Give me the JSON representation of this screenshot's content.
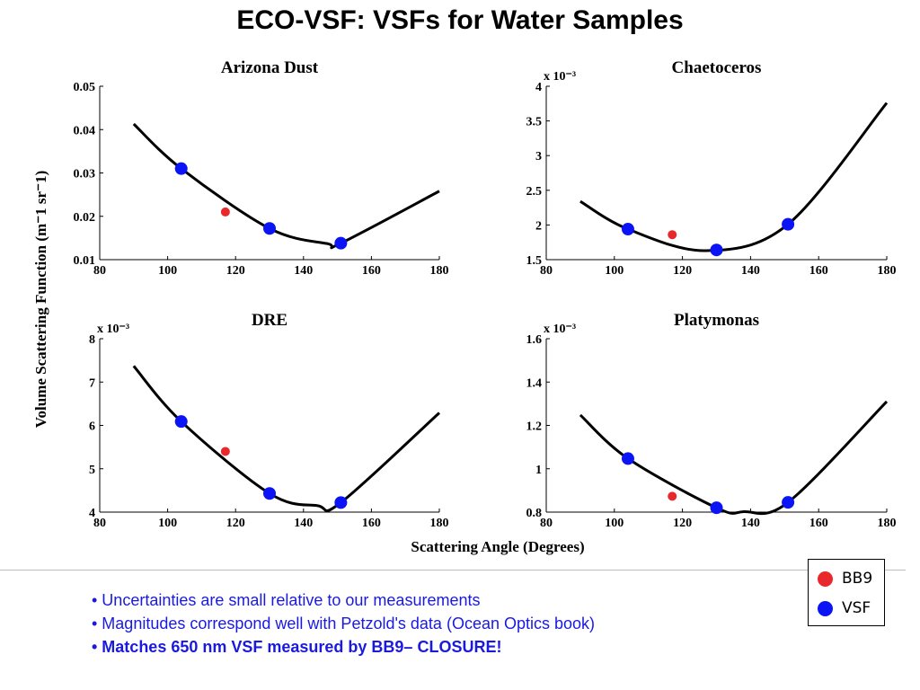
{
  "slide": {
    "title": "ECO-VSF: VSFs for Water Samples",
    "notes": [
      "• Uncertainties are small relative to our measurements",
      "• Magnitudes correspond well with Petzold's data (Ocean Optics book)",
      "• Matches 650 nm VSF measured by BB9– CLOSURE!"
    ]
  },
  "legend": {
    "items": [
      {
        "label": "BB9",
        "color": "#e8282b"
      },
      {
        "label": "VSF",
        "color": "#0a14f5"
      }
    ]
  },
  "colors": {
    "bb9": "#e8282b",
    "vsf": "#0a14f5",
    "fit": "#000000",
    "notes_text": "#1a1adf"
  },
  "shared_labels": {
    "ylabel": "Volume Scattering Function (m⁻1 sr⁻1)",
    "xlabel": "Scattering Angle (Degrees)"
  },
  "chart_data": [
    {
      "type": "scatter",
      "title": "Arizona Dust",
      "xlim": [
        80,
        180
      ],
      "ylim": [
        0.01,
        0.05
      ],
      "xticks": [
        80,
        100,
        120,
        140,
        160,
        180
      ],
      "yticks": [
        0.01,
        0.02,
        0.03,
        0.04,
        0.05
      ],
      "ytick_labels": [
        "0.01",
        "0.02",
        "0.03",
        "0.04",
        "0.05"
      ],
      "multiplier": "",
      "series": [
        {
          "name": "VSF",
          "color": "#0a14f5",
          "x": [
            104,
            130,
            151
          ],
          "y": [
            0.031,
            0.0172,
            0.0138
          ]
        },
        {
          "name": "BB9",
          "color": "#e8282b",
          "x": [
            117
          ],
          "y": [
            0.021
          ]
        }
      ],
      "fit": {
        "x": [
          90,
          104,
          130,
          147,
          151,
          180
        ],
        "y": [
          0.0413,
          0.031,
          0.0172,
          0.0137,
          0.0138,
          0.0258
        ]
      }
    },
    {
      "type": "scatter",
      "title": "Chaetoceros",
      "xlim": [
        80,
        180
      ],
      "ylim": [
        1.5,
        4
      ],
      "xticks": [
        80,
        100,
        120,
        140,
        160,
        180
      ],
      "yticks": [
        1.5,
        2,
        2.5,
        3,
        3.5,
        4
      ],
      "ytick_labels": [
        "1.5",
        "2",
        "2.5",
        "3",
        "3.5",
        "4"
      ],
      "multiplier": "x 10⁻³",
      "series": [
        {
          "name": "VSF",
          "color": "#0a14f5",
          "x": [
            104,
            130,
            151
          ],
          "y": [
            1.94,
            1.64,
            2.01
          ]
        },
        {
          "name": "BB9",
          "color": "#e8282b",
          "x": [
            117
          ],
          "y": [
            1.86
          ]
        }
      ],
      "fit": {
        "x": [
          90,
          104,
          127,
          151,
          180
        ],
        "y": [
          2.34,
          1.94,
          1.63,
          2.01,
          3.76
        ]
      }
    },
    {
      "type": "scatter",
      "title": "DRE",
      "xlim": [
        80,
        180
      ],
      "ylim": [
        4,
        8
      ],
      "xticks": [
        80,
        100,
        120,
        140,
        160,
        180
      ],
      "yticks": [
        4,
        5,
        6,
        7,
        8
      ],
      "ytick_labels": [
        "4",
        "5",
        "6",
        "7",
        "8"
      ],
      "multiplier": "x 10⁻³",
      "series": [
        {
          "name": "VSF",
          "color": "#0a14f5",
          "x": [
            104,
            130,
            151
          ],
          "y": [
            6.09,
            4.43,
            4.22
          ]
        },
        {
          "name": "BB9",
          "color": "#e8282b",
          "x": [
            117
          ],
          "y": [
            5.4
          ]
        }
      ],
      "fit": {
        "x": [
          90,
          104,
          130,
          144,
          151,
          180
        ],
        "y": [
          7.37,
          6.09,
          4.43,
          4.15,
          4.22,
          6.29
        ]
      }
    },
    {
      "type": "scatter",
      "title": "Platymonas",
      "xlim": [
        80,
        180
      ],
      "ylim": [
        0.8,
        1.6
      ],
      "xticks": [
        80,
        100,
        120,
        140,
        160,
        180
      ],
      "yticks": [
        0.8,
        1,
        1.2,
        1.4,
        1.6
      ],
      "ytick_labels": [
        "0.8",
        "1",
        "1.2",
        "1.4",
        "1.6"
      ],
      "multiplier": "x 10⁻³",
      "series": [
        {
          "name": "VSF",
          "color": "#0a14f5",
          "x": [
            104,
            130,
            151
          ],
          "y": [
            1.047,
            0.82,
            0.845
          ]
        },
        {
          "name": "BB9",
          "color": "#e8282b",
          "x": [
            117
          ],
          "y": [
            0.873
          ]
        }
      ],
      "fit": {
        "x": [
          90,
          104,
          130,
          138,
          151,
          180
        ],
        "y": [
          1.248,
          1.047,
          0.82,
          0.802,
          0.845,
          1.31
        ]
      }
    }
  ]
}
